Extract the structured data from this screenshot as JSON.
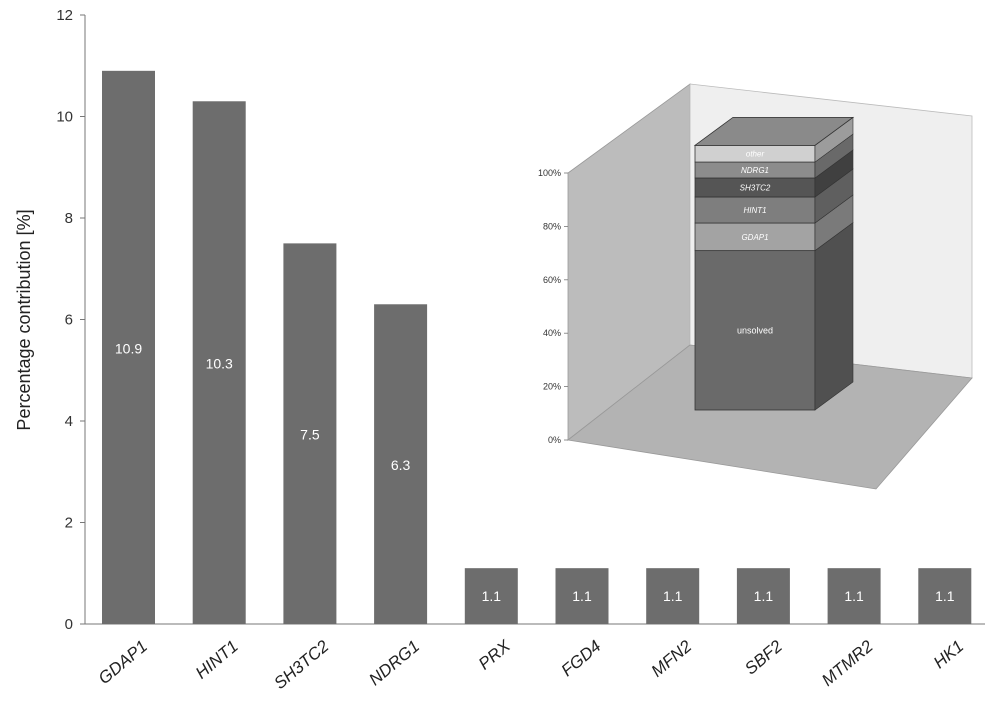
{
  "chart_data": [
    {
      "type": "bar",
      "title": "",
      "xlabel": "",
      "ylabel": "Percentage contribution [%]",
      "ylim": [
        0,
        12
      ],
      "yticks": [
        "0",
        "2",
        "4",
        "6",
        "8",
        "10",
        "12"
      ],
      "grid": false,
      "categories": [
        "GDAP1",
        "HINT1",
        "SH3TC2",
        "NDRG1",
        "PRX",
        "FGD4",
        "MFN2",
        "SBF2",
        "MTMR2",
        "HK1"
      ],
      "values": [
        10.9,
        10.3,
        7.5,
        6.3,
        1.1,
        1.1,
        1.1,
        1.1,
        1.1,
        1.1
      ],
      "data_labels": [
        "10.9",
        "10.3",
        "7.5",
        "6.3",
        "1.1",
        "1.1",
        "1.1",
        "1.1",
        "1.1",
        "1.1"
      ],
      "bar_color": "#6d6d6d"
    },
    {
      "type": "bar",
      "variant": "stacked-3d",
      "placement": "inset top-right",
      "ylim": [
        0,
        100
      ],
      "yticks": [
        "0%",
        "20%",
        "40%",
        "60%",
        "80%",
        "100%"
      ],
      "segments": [
        {
          "label": "unsolved",
          "value": 63,
          "color": "#6a6a6a"
        },
        {
          "label": "GDAP1",
          "value": 10.9,
          "color": "#a3a3a3"
        },
        {
          "label": "HINT1",
          "value": 10.3,
          "color": "#7e7e7e"
        },
        {
          "label": "SH3TC2",
          "value": 7.5,
          "color": "#555555"
        },
        {
          "label": "NDRG1",
          "value": 6.3,
          "color": "#8c8c8c"
        },
        {
          "label": "other",
          "value": 6.6,
          "color": "#d0d0d0"
        }
      ]
    }
  ]
}
